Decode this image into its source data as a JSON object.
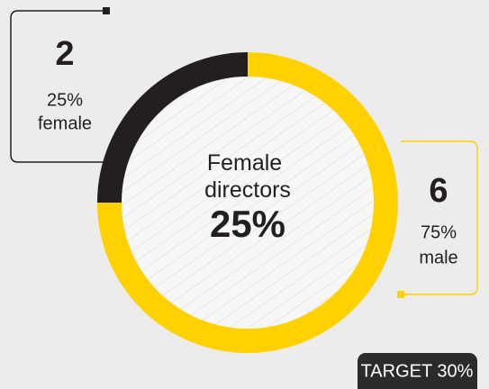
{
  "chart_data": {
    "type": "donut",
    "categories": [
      "female",
      "male"
    ],
    "values": [
      2,
      6
    ],
    "shares": [
      25,
      75
    ],
    "share_labels": [
      "25%",
      "75%"
    ],
    "colors": [
      "#231f20",
      "#ffd100"
    ],
    "center_title": "Female directors",
    "center_value": "25%",
    "target": "TARGET 30%"
  }
}
